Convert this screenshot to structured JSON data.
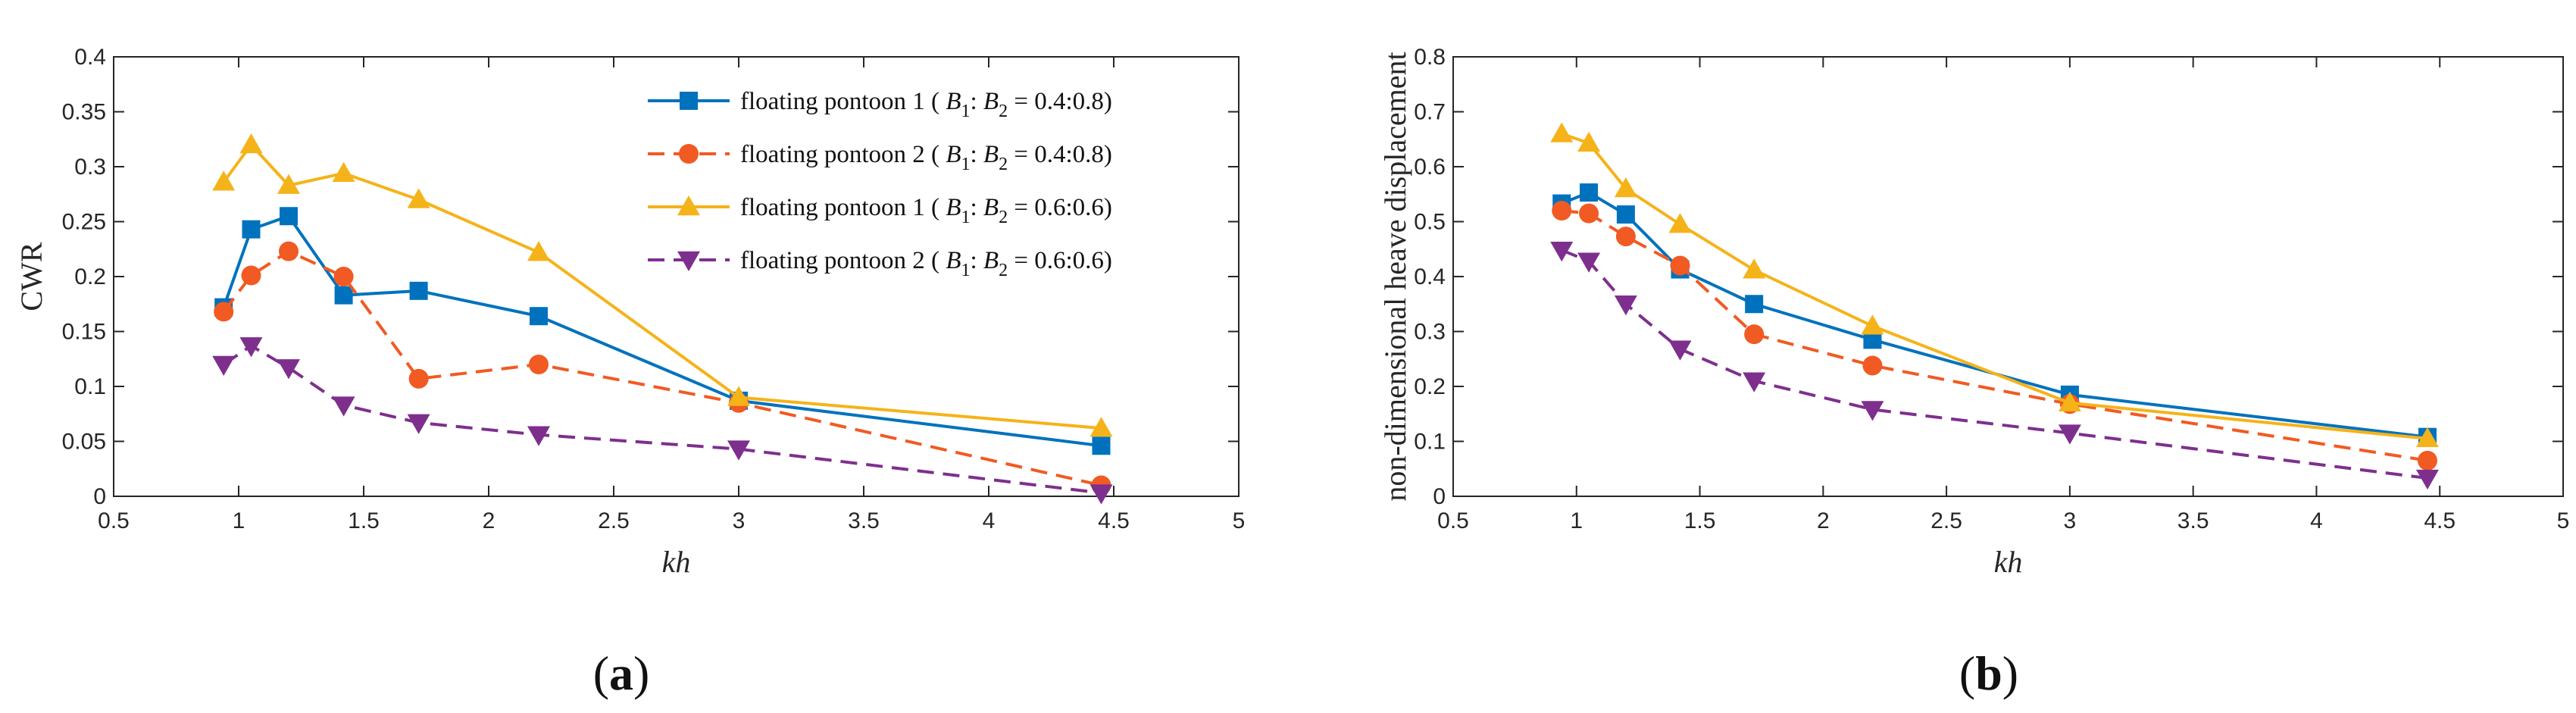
{
  "chart_data": [
    {
      "type": "line",
      "panel_label": "(a)",
      "panel_letter": "a",
      "xlabel": "kh",
      "ylabel": "CWR",
      "xlim": [
        0.5,
        5
      ],
      "ylim": [
        0,
        0.4
      ],
      "xticks": [
        "0.5",
        "1",
        "1.5",
        "2",
        "2.5",
        "3",
        "3.5",
        "4",
        "4.5",
        "5"
      ],
      "yticks": [
        "0",
        "0.05",
        "0.1",
        "0.15",
        "0.2",
        "0.25",
        "0.3",
        "0.35",
        "0.4"
      ],
      "grid": false,
      "legend_position": "top-right",
      "x": [
        0.94,
        1.05,
        1.2,
        1.42,
        1.72,
        2.2,
        3.0,
        4.45
      ],
      "series": [
        {
          "name": "floating pontoon 1",
          "ratio": "0.4:0.8",
          "color": "#0072BD",
          "marker": "square",
          "dash": "solid",
          "values": [
            0.172,
            0.243,
            0.255,
            0.183,
            0.187,
            0.164,
            0.087,
            0.046
          ]
        },
        {
          "name": "floating pontoon 2",
          "ratio": "0.4:0.8",
          "color": "#F15A22",
          "marker": "circle",
          "dash": "dashed",
          "values": [
            0.168,
            0.201,
            0.223,
            0.2,
            0.107,
            0.12,
            0.085,
            0.01
          ]
        },
        {
          "name": "floating pontoon 1",
          "ratio": "0.6:0.6",
          "color": "#F5B31A",
          "marker": "triangle-up",
          "dash": "solid",
          "values": [
            0.286,
            0.32,
            0.283,
            0.294,
            0.27,
            0.222,
            0.09,
            0.062
          ]
        },
        {
          "name": "floating pontoon 2",
          "ratio": "0.6:0.6",
          "color": "#7E2F8E",
          "marker": "triangle-down",
          "dash": "dashed",
          "values": [
            0.12,
            0.137,
            0.117,
            0.083,
            0.067,
            0.056,
            0.043,
            0.003
          ]
        }
      ]
    },
    {
      "type": "line",
      "panel_label": "(b)",
      "panel_letter": "b",
      "xlabel": "kh",
      "ylabel": "non-dimensional heave displacement",
      "xlim": [
        0.5,
        5
      ],
      "ylim": [
        0,
        0.8
      ],
      "xticks": [
        "0.5",
        "1",
        "1.5",
        "2",
        "2.5",
        "3",
        "3.5",
        "4",
        "4.5",
        "5"
      ],
      "yticks": [
        "0",
        "0.1",
        "0.2",
        "0.3",
        "0.4",
        "0.5",
        "0.6",
        "0.7",
        "0.8"
      ],
      "grid": false,
      "x": [
        0.94,
        1.05,
        1.2,
        1.42,
        1.72,
        2.2,
        3.0,
        4.45
      ],
      "series": [
        {
          "name": "floating pontoon 1",
          "ratio": "0.4:0.8",
          "color": "#0072BD",
          "marker": "square",
          "dash": "solid",
          "values": [
            0.533,
            0.553,
            0.513,
            0.413,
            0.35,
            0.285,
            0.185,
            0.108
          ]
        },
        {
          "name": "floating pontoon 2",
          "ratio": "0.4:0.8",
          "color": "#F15A22",
          "marker": "circle",
          "dash": "dashed",
          "values": [
            0.52,
            0.515,
            0.473,
            0.42,
            0.295,
            0.238,
            0.168,
            0.065
          ]
        },
        {
          "name": "floating pontoon 1",
          "ratio": "0.6:0.6",
          "color": "#F5B31A",
          "marker": "triangle-up",
          "dash": "solid",
          "values": [
            0.66,
            0.643,
            0.56,
            0.495,
            0.412,
            0.31,
            0.17,
            0.105
          ]
        },
        {
          "name": "floating pontoon 2",
          "ratio": "0.6:0.6",
          "color": "#7E2F8E",
          "marker": "triangle-down",
          "dash": "dashed",
          "values": [
            0.448,
            0.428,
            0.35,
            0.268,
            0.21,
            0.158,
            0.115,
            0.033
          ]
        }
      ]
    }
  ]
}
